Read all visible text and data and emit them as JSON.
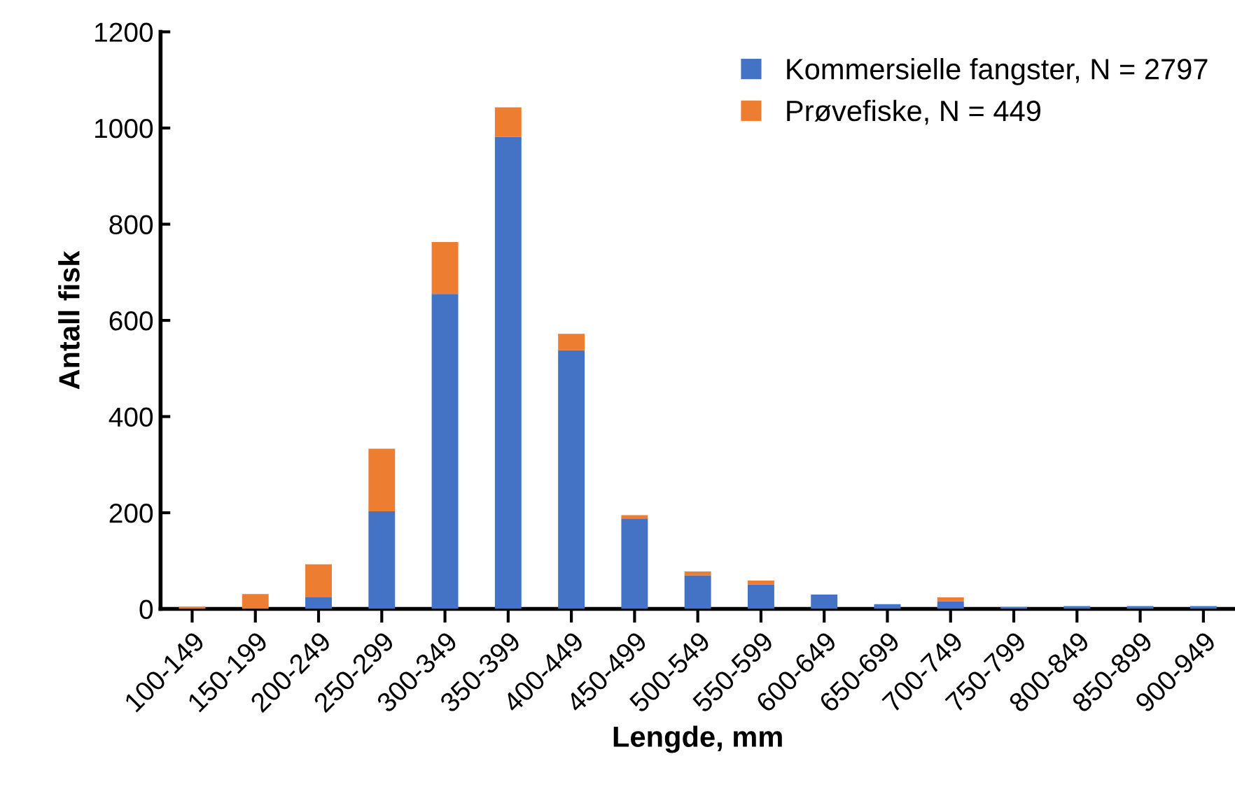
{
  "chart_data": {
    "type": "bar",
    "stacked": true,
    "xlabel": "Lengde, mm",
    "ylabel": "Antall fisk",
    "categories": [
      "100-149",
      "150-199",
      "200-249",
      "250-299",
      "300-349",
      "350-399",
      "400-449",
      "450-499",
      "500-549",
      "550-599",
      "600-649",
      "650-699",
      "700-749",
      "750-799",
      "800-849",
      "850-899",
      "900-949"
    ],
    "series": [
      {
        "name": "Kommersielle fangster, N = 2797",
        "color": "#4472c4",
        "values": [
          0,
          0,
          24,
          203,
          655,
          982,
          538,
          188,
          70,
          51,
          30,
          10,
          16,
          4,
          6,
          6,
          6
        ]
      },
      {
        "name": "Prøvefiske, N = 449",
        "color": "#ed7d31",
        "values": [
          5,
          31,
          69,
          130,
          108,
          61,
          34,
          7,
          8,
          8,
          0,
          0,
          8,
          0,
          0,
          0,
          0
        ]
      }
    ],
    "ylim": [
      0,
      1200
    ],
    "yticks": [
      0,
      200,
      400,
      600,
      800,
      1000,
      1200
    ],
    "grid": false,
    "legend": "top right"
  }
}
